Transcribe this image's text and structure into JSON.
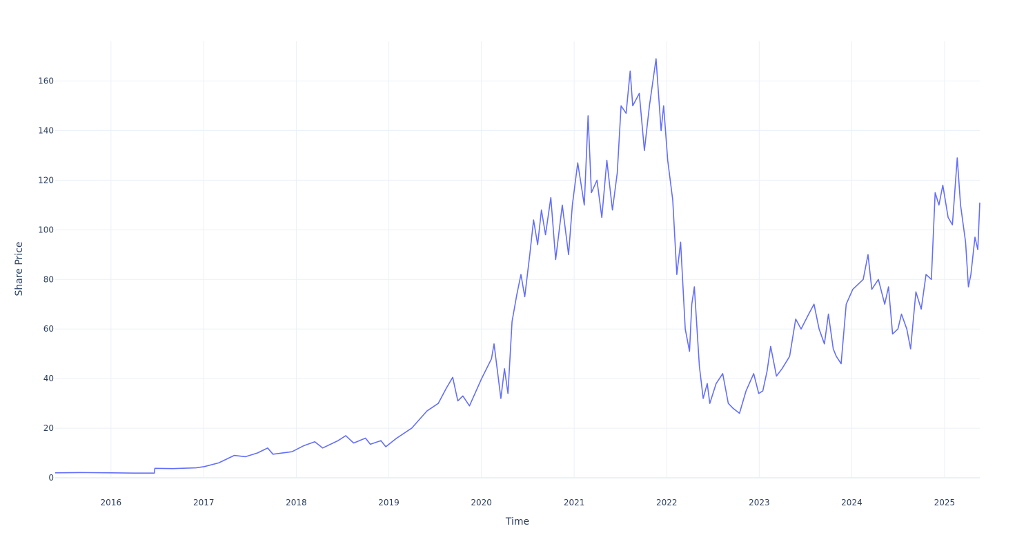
{
  "chart_data": {
    "type": "line",
    "title": "",
    "xlabel": "Time",
    "ylabel": "Share Price",
    "x_tick_labels": [
      "2016",
      "2017",
      "2018",
      "2019",
      "2020",
      "2021",
      "2022",
      "2023",
      "2024",
      "2025"
    ],
    "y_tick_values": [
      0,
      20,
      40,
      60,
      80,
      100,
      120,
      140,
      160
    ],
    "y_tick_labels": [
      "0",
      "20",
      "40",
      "60",
      "80",
      "100",
      "120",
      "140",
      "160"
    ],
    "xlim": [
      "2015-05-26",
      "2025-05-20"
    ],
    "ylim": [
      0,
      176
    ],
    "grid": true,
    "legend": "none",
    "series": [
      {
        "color": "#636efa",
        "points": [
          [
            "2015-05-26",
            2.0
          ],
          [
            "2015-09-01",
            2.1
          ],
          [
            "2016-01-04",
            2.0
          ],
          [
            "2016-04-01",
            1.9
          ],
          [
            "2016-06-20",
            1.9
          ],
          [
            "2016-06-22",
            3.8
          ],
          [
            "2016-09-01",
            3.7
          ],
          [
            "2016-12-01",
            4.0
          ],
          [
            "2017-01-03",
            4.5
          ],
          [
            "2017-03-01",
            6.0
          ],
          [
            "2017-05-01",
            9.0
          ],
          [
            "2017-06-15",
            8.5
          ],
          [
            "2017-08-01",
            10.0
          ],
          [
            "2017-09-10",
            12.0
          ],
          [
            "2017-10-01",
            9.5
          ],
          [
            "2017-12-15",
            10.5
          ],
          [
            "2018-02-01",
            13.0
          ],
          [
            "2018-03-15",
            14.5
          ],
          [
            "2018-04-15",
            12.0
          ],
          [
            "2018-06-15",
            15.0
          ],
          [
            "2018-07-15",
            17.0
          ],
          [
            "2018-08-15",
            14.0
          ],
          [
            "2018-10-01",
            16.0
          ],
          [
            "2018-10-20",
            13.5
          ],
          [
            "2018-12-01",
            15.0
          ],
          [
            "2018-12-20",
            12.5
          ],
          [
            "2019-02-01",
            16.0
          ],
          [
            "2019-04-01",
            20.0
          ],
          [
            "2019-06-01",
            27.0
          ],
          [
            "2019-07-15",
            30.0
          ],
          [
            "2019-08-15",
            36.0
          ],
          [
            "2019-09-10",
            40.5
          ],
          [
            "2019-09-30",
            31.0
          ],
          [
            "2019-10-20",
            33.0
          ],
          [
            "2019-11-15",
            29.0
          ],
          [
            "2020-01-02",
            40.0
          ],
          [
            "2020-02-10",
            48.0
          ],
          [
            "2020-02-20",
            54.0
          ],
          [
            "2020-03-18",
            32.0
          ],
          [
            "2020-04-01",
            44.0
          ],
          [
            "2020-04-15",
            34.0
          ],
          [
            "2020-05-01",
            63.0
          ],
          [
            "2020-05-20",
            74.0
          ],
          [
            "2020-06-05",
            82.0
          ],
          [
            "2020-06-20",
            73.0
          ],
          [
            "2020-07-10",
            90.0
          ],
          [
            "2020-07-25",
            104.0
          ],
          [
            "2020-08-10",
            94.0
          ],
          [
            "2020-08-25",
            108.0
          ],
          [
            "2020-09-10",
            98.0
          ],
          [
            "2020-10-01",
            113.0
          ],
          [
            "2020-10-20",
            88.0
          ],
          [
            "2020-11-15",
            110.0
          ],
          [
            "2020-12-10",
            90.0
          ],
          [
            "2020-12-25",
            110.0
          ],
          [
            "2021-01-15",
            127.0
          ],
          [
            "2021-02-10",
            110.0
          ],
          [
            "2021-02-25",
            146.0
          ],
          [
            "2021-03-10",
            115.0
          ],
          [
            "2021-04-01",
            120.0
          ],
          [
            "2021-04-20",
            105.0
          ],
          [
            "2021-05-10",
            128.0
          ],
          [
            "2021-06-01",
            108.0
          ],
          [
            "2021-06-20",
            123.0
          ],
          [
            "2021-07-05",
            150.0
          ],
          [
            "2021-07-25",
            147.0
          ],
          [
            "2021-08-10",
            164.0
          ],
          [
            "2021-08-20",
            150.0
          ],
          [
            "2021-09-15",
            155.0
          ],
          [
            "2021-10-05",
            132.0
          ],
          [
            "2021-10-25",
            150.0
          ],
          [
            "2021-11-20",
            169.0
          ],
          [
            "2021-12-10",
            140.0
          ],
          [
            "2021-12-20",
            150.0
          ],
          [
            "2022-01-05",
            128.0
          ],
          [
            "2022-01-25",
            112.0
          ],
          [
            "2022-02-10",
            82.0
          ],
          [
            "2022-02-25",
            95.0
          ],
          [
            "2022-03-15",
            60.0
          ],
          [
            "2022-04-01",
            51.0
          ],
          [
            "2022-04-10",
            70.0
          ],
          [
            "2022-04-20",
            77.0
          ],
          [
            "2022-05-10",
            45.0
          ],
          [
            "2022-05-25",
            32.0
          ],
          [
            "2022-06-10",
            38.0
          ],
          [
            "2022-06-20",
            30.0
          ],
          [
            "2022-07-15",
            38.0
          ],
          [
            "2022-08-10",
            42.0
          ],
          [
            "2022-09-01",
            30.0
          ],
          [
            "2022-09-20",
            28.0
          ],
          [
            "2022-10-15",
            26.0
          ],
          [
            "2022-11-10",
            35.0
          ],
          [
            "2022-12-10",
            42.0
          ],
          [
            "2022-12-30",
            34.0
          ],
          [
            "2023-01-15",
            35.0
          ],
          [
            "2023-02-01",
            43.0
          ],
          [
            "2023-02-15",
            53.0
          ],
          [
            "2023-03-10",
            41.0
          ],
          [
            "2023-04-01",
            44.0
          ],
          [
            "2023-05-01",
            49.0
          ],
          [
            "2023-05-25",
            64.0
          ],
          [
            "2023-06-15",
            60.0
          ],
          [
            "2023-07-15",
            66.0
          ],
          [
            "2023-08-05",
            70.0
          ],
          [
            "2023-08-25",
            60.0
          ],
          [
            "2023-09-15",
            54.0
          ],
          [
            "2023-10-01",
            66.0
          ],
          [
            "2023-10-20",
            52.0
          ],
          [
            "2023-11-01",
            49.0
          ],
          [
            "2023-11-20",
            46.0
          ],
          [
            "2023-12-10",
            70.0
          ],
          [
            "2024-01-05",
            76.0
          ],
          [
            "2024-02-15",
            80.0
          ],
          [
            "2024-03-05",
            90.0
          ],
          [
            "2024-03-20",
            76.0
          ],
          [
            "2024-04-15",
            80.0
          ],
          [
            "2024-05-10",
            70.0
          ],
          [
            "2024-05-25",
            77.0
          ],
          [
            "2024-06-10",
            58.0
          ],
          [
            "2024-07-01",
            60.0
          ],
          [
            "2024-07-15",
            66.0
          ],
          [
            "2024-08-05",
            60.0
          ],
          [
            "2024-08-20",
            52.0
          ],
          [
            "2024-09-10",
            75.0
          ],
          [
            "2024-10-01",
            68.0
          ],
          [
            "2024-10-20",
            82.0
          ],
          [
            "2024-11-10",
            80.0
          ],
          [
            "2024-11-25",
            115.0
          ],
          [
            "2024-12-10",
            110.0
          ],
          [
            "2024-12-25",
            118.0
          ],
          [
            "2025-01-15",
            105.0
          ],
          [
            "2025-02-01",
            102.0
          ],
          [
            "2025-02-20",
            129.0
          ],
          [
            "2025-03-05",
            110.0
          ],
          [
            "2025-03-25",
            95.0
          ],
          [
            "2025-04-05",
            77.0
          ],
          [
            "2025-04-15",
            82.0
          ],
          [
            "2025-05-01",
            97.0
          ],
          [
            "2025-05-12",
            92.0
          ],
          [
            "2025-05-20",
            111.0
          ]
        ]
      }
    ]
  }
}
